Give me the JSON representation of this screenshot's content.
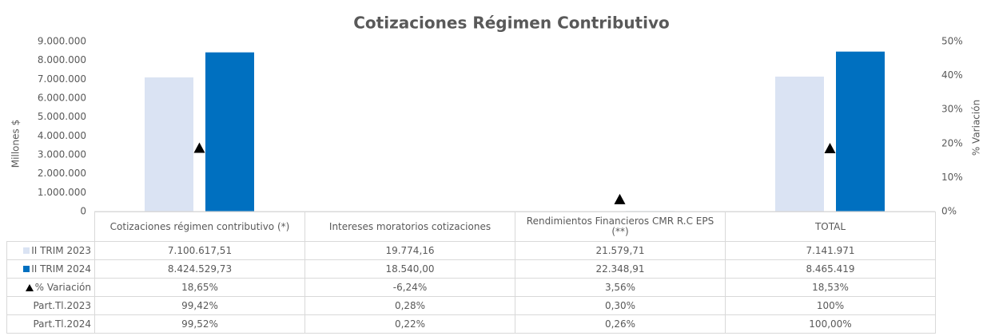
{
  "chart_data": {
    "type": "bar",
    "title": "Cotizaciones Régimen Contributivo",
    "y_label": "Millones $",
    "y2_label": "% Variación",
    "categories": [
      "Cotizaciones régimen contributivo (*)",
      "Intereses moratorios cotizaciones",
      "Rendimientos Financieros CMR R.C EPS (**)",
      "TOTAL"
    ],
    "series": [
      {
        "name": "II TRIM 2023",
        "type": "bar",
        "color": "#dae3f3",
        "values": [
          7100617.51,
          19774.16,
          21579.71,
          7141971
        ],
        "value_labels": [
          "7.100.617,51",
          "19.774,16",
          "21.579,71",
          "7.141.971"
        ]
      },
      {
        "name": "II TRIM 2024",
        "type": "bar",
        "color": "#0070c0",
        "values": [
          8424529.73,
          18540.0,
          22348.91,
          8465419
        ],
        "value_labels": [
          "8.424.529,73",
          "18.540,00",
          "22.348,91",
          "8.465.419"
        ]
      },
      {
        "name": "% Variación",
        "type": "scatter",
        "marker": "triangle",
        "color": "#000000",
        "axis": "y2",
        "values": [
          18.65,
          -6.24,
          3.56,
          18.53
        ],
        "value_labels": [
          "18,65%",
          "-6,24%",
          "3,56%",
          "18,53%"
        ]
      }
    ],
    "table_rows": [
      {
        "name": "Part.Tl.2023",
        "cells": [
          "99,42%",
          "0,28%",
          "0,30%",
          "100%"
        ]
      },
      {
        "name": "Part.Tl.2024",
        "cells": [
          "99,52%",
          "0,22%",
          "0,26%",
          "100,00%"
        ]
      }
    ],
    "ylim": [
      0,
      9000000
    ],
    "yticks": [
      0,
      {
        "value": 1000000,
        "label": "1.000.000"
      },
      {
        "value": 2000000,
        "label": "2.000.000"
      },
      {
        "value": 3000000,
        "label": "3.000.000"
      },
      {
        "value": 4000000,
        "label": "4.000.000"
      },
      {
        "value": 5000000,
        "label": "5.000.000"
      },
      {
        "value": 6000000,
        "label": "6.000.000"
      },
      {
        "value": 7000000,
        "label": "7.000.000"
      },
      {
        "value": 8000000,
        "label": "8.000.000"
      },
      {
        "value": 9000000,
        "label": "9.000.000"
      }
    ],
    "y2lim": [
      0,
      50
    ],
    "y2ticks": [
      {
        "value": 0,
        "label": "0%"
      },
      {
        "value": 10,
        "label": "10%"
      },
      {
        "value": 20,
        "label": "20%"
      },
      {
        "value": 30,
        "label": "30%"
      },
      {
        "value": 40,
        "label": "40%"
      },
      {
        "value": 50,
        "label": "50%"
      }
    ]
  }
}
